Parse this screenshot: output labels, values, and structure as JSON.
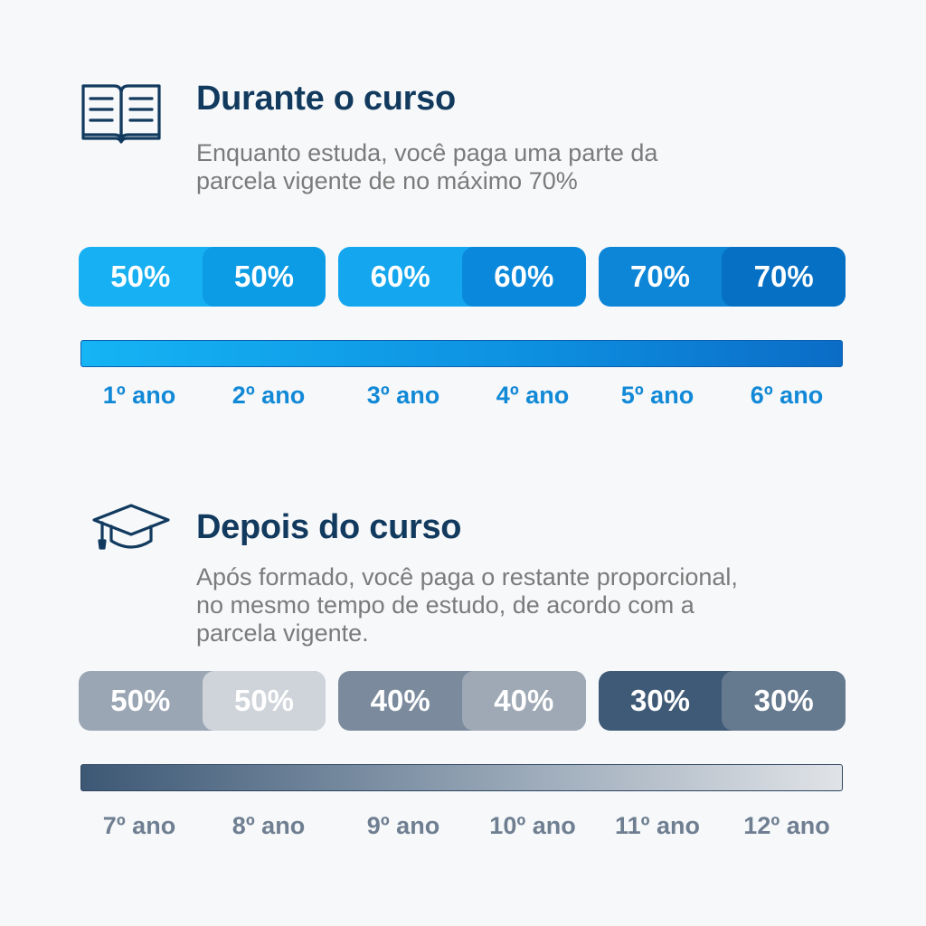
{
  "during": {
    "icon": "open-book-icon",
    "title": "Durante o curso",
    "description_lines": [
      "Enquanto estuda, você paga uma parte da",
      "parcela vigente de no máximo 70%"
    ],
    "pills": [
      {
        "left": "50%",
        "right": "50%"
      },
      {
        "left": "60%",
        "right": "60%"
      },
      {
        "left": "70%",
        "right": "70%"
      }
    ],
    "years": [
      "1º ano",
      "2º ano",
      "3º ano",
      "4º ano",
      "5º ano",
      "6º ano"
    ]
  },
  "after": {
    "icon": "graduation-cap-icon",
    "title": "Depois do curso",
    "description_lines": [
      "Após formado, você paga o restante proporcional,",
      "no mesmo tempo de estudo, de acordo com a",
      "parcela vigente."
    ],
    "pills": [
      {
        "left": "50%",
        "right": "50%"
      },
      {
        "left": "40%",
        "right": "40%"
      },
      {
        "left": "30%",
        "right": "30%"
      }
    ],
    "years": [
      "7º ano",
      "8º ano",
      "9º ano",
      "10º ano",
      "11º ano",
      "12º ano"
    ]
  },
  "colors": {
    "title": "#123a5e",
    "during_accent": "#1289d6",
    "after_accent": "#6f7f91"
  }
}
